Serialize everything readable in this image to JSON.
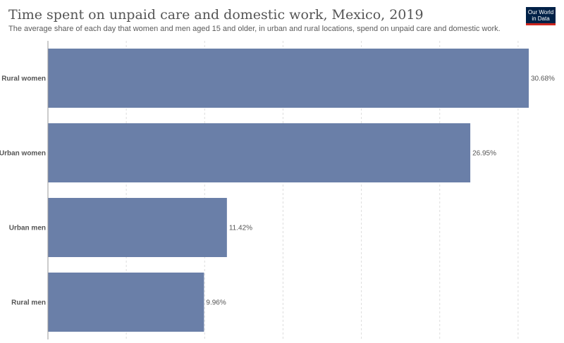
{
  "header": {
    "title": "Time spent on unpaid care and domestic work, Mexico, 2019",
    "subtitle": "The average share of each day that women and men aged 15 and older, in urban and rural locations, spend on unpaid care and domestic work.",
    "logo_line1": "Our World",
    "logo_line2": "in Data"
  },
  "chart_data": {
    "type": "bar",
    "orientation": "horizontal",
    "title": "Time spent on unpaid care and domestic work, Mexico, 2019",
    "categories": [
      "Rural women",
      "Urban women",
      "Urban men",
      "Rural men"
    ],
    "values": [
      30.68,
      26.95,
      11.42,
      9.96
    ],
    "value_labels": [
      "30.68%",
      "26.95%",
      "11.42%",
      "9.96%"
    ],
    "xlim": [
      0,
      31
    ],
    "unit": "%",
    "grid": true,
    "bar_color": "#6a7fa8"
  }
}
